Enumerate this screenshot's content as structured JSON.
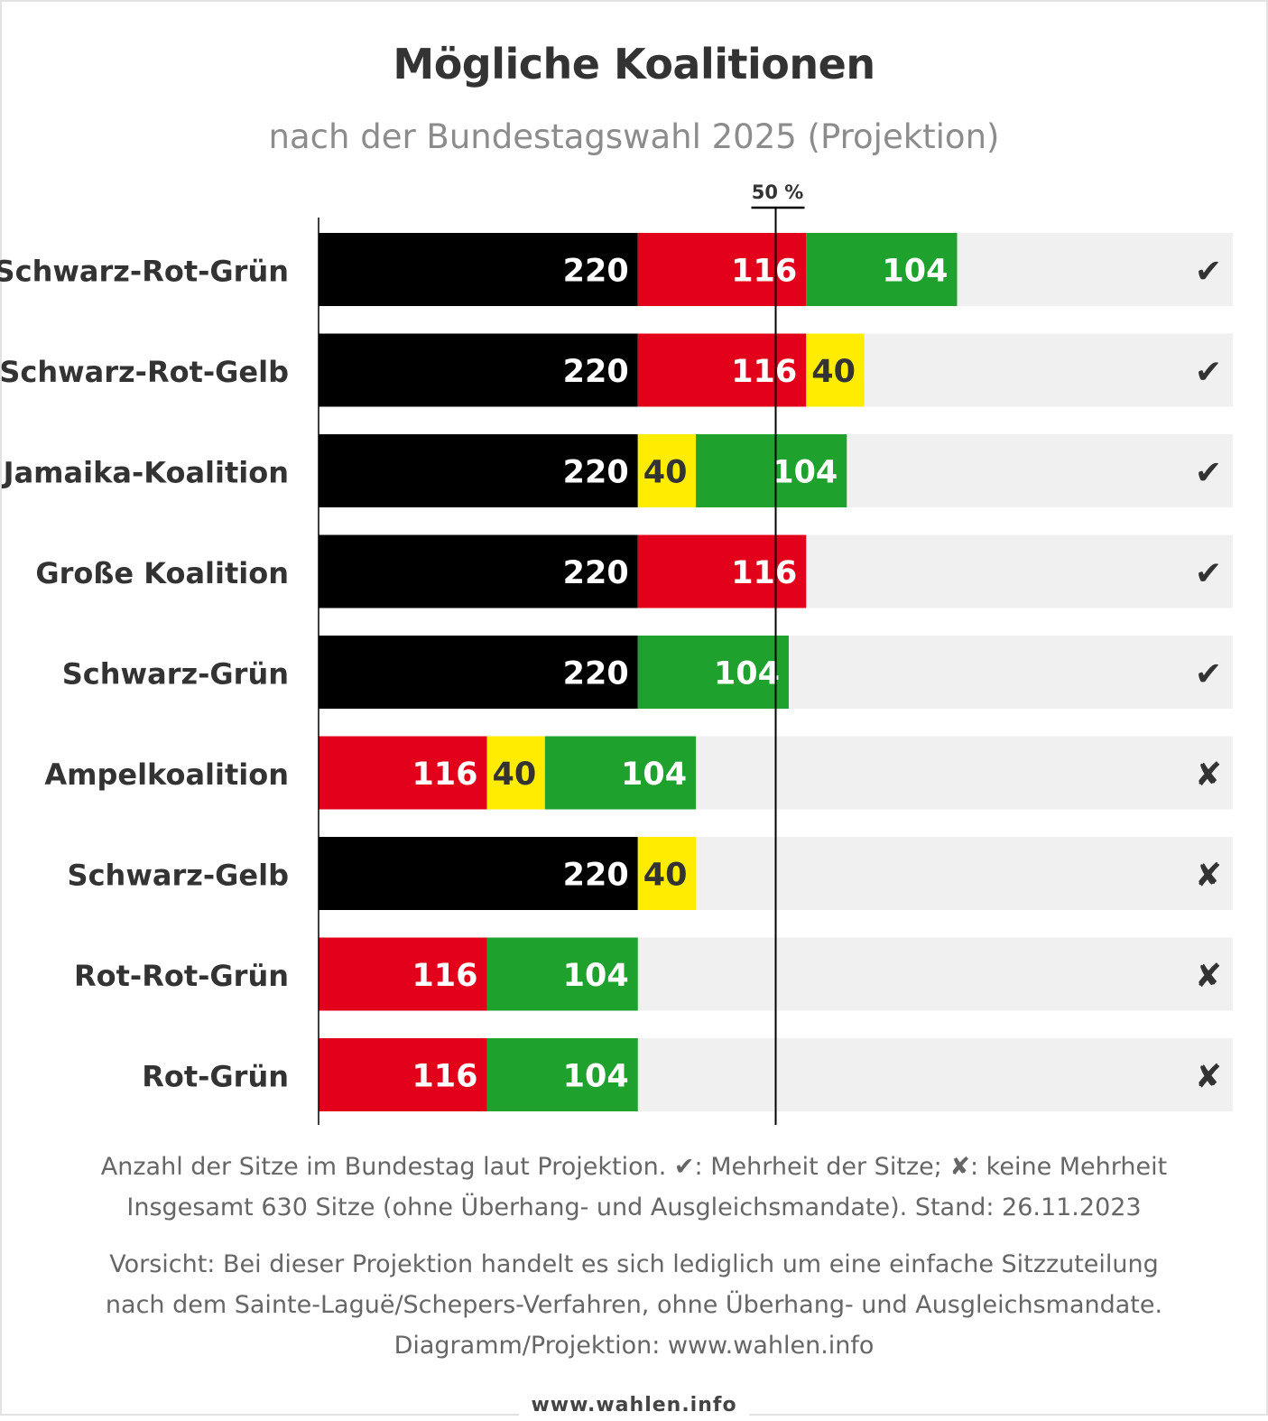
{
  "title": "Mögliche Koalitionen",
  "subtitle": "nach der Bundestagswahl 2025 (Projektion)",
  "colors": {
    "black": "#000000",
    "red": "#e2001a",
    "green": "#1fa12e",
    "yellow": "#ffec00",
    "purple": "#7a3ab8",
    "track": "#f0f0f0"
  },
  "icons": {
    "majority": "check-icon",
    "no_majority": "cross-icon"
  },
  "chart_data": {
    "type": "bar",
    "orientation": "horizontal",
    "stacked": true,
    "total_seats": 630,
    "majority_line": {
      "value": 315,
      "label": "50 %"
    },
    "xlim": [
      0,
      630
    ],
    "grid": false,
    "legend": "none",
    "categories": [
      "Schwarz-Rot-Grün",
      "Schwarz-Rot-Gelb",
      "Jamaika-Koalition",
      "Große Koalition",
      "Schwarz-Grün",
      "Ampelkoalition",
      "Schwarz-Gelb",
      "Rot-Rot-Grün",
      "Rot-Grün"
    ],
    "rows": [
      {
        "label": "Schwarz-Rot-Grün",
        "majority": true,
        "symbol": "✔",
        "segments": [
          {
            "value": 220,
            "color": "black"
          },
          {
            "value": 116,
            "color": "red"
          },
          {
            "value": 104,
            "color": "green"
          }
        ]
      },
      {
        "label": "Schwarz-Rot-Gelb",
        "majority": true,
        "symbol": "✔",
        "segments": [
          {
            "value": 220,
            "color": "black"
          },
          {
            "value": 116,
            "color": "red"
          },
          {
            "value": 40,
            "color": "yellow"
          }
        ]
      },
      {
        "label": "Jamaika-Koalition",
        "majority": true,
        "symbol": "✔",
        "segments": [
          {
            "value": 220,
            "color": "black"
          },
          {
            "value": 40,
            "color": "yellow"
          },
          {
            "value": 104,
            "color": "green"
          }
        ]
      },
      {
        "label": "Große Koalition",
        "majority": true,
        "symbol": "✔",
        "segments": [
          {
            "value": 220,
            "color": "black"
          },
          {
            "value": 116,
            "color": "red"
          }
        ]
      },
      {
        "label": "Schwarz-Grün",
        "majority": true,
        "symbol": "✔",
        "segments": [
          {
            "value": 220,
            "color": "black"
          },
          {
            "value": 104,
            "color": "green"
          }
        ]
      },
      {
        "label": "Ampelkoalition",
        "majority": false,
        "symbol": "✘",
        "segments": [
          {
            "value": 116,
            "color": "red"
          },
          {
            "value": 40,
            "color": "yellow"
          },
          {
            "value": 104,
            "color": "green"
          }
        ]
      },
      {
        "label": "Schwarz-Gelb",
        "majority": false,
        "symbol": "✘",
        "segments": [
          {
            "value": 220,
            "color": "black"
          },
          {
            "value": 40,
            "color": "yellow"
          }
        ]
      },
      {
        "label": "Rot-Rot-Grün",
        "majority": false,
        "symbol": "✘",
        "segments": [
          {
            "value": 116,
            "color": "red"
          },
          {
            "value": 0,
            "color": "purple"
          },
          {
            "value": 104,
            "color": "green"
          }
        ]
      },
      {
        "label": "Rot-Grün",
        "majority": false,
        "symbol": "✘",
        "segments": [
          {
            "value": 116,
            "color": "red"
          },
          {
            "value": 104,
            "color": "green"
          }
        ]
      }
    ]
  },
  "footnotes": {
    "line1": "Anzahl der Sitze im Bundestag laut Projektion. ✔: Mehrheit der Sitze; ✘: keine Mehrheit",
    "line2": "Insgesamt 630 Sitze (ohne Überhang- und Ausgleichsmandate). Stand: 26.11.2023",
    "line3": "Vorsicht: Bei dieser Projektion handelt es sich lediglich um eine einfache Sitzzuteilung",
    "line4": "nach dem Sainte-Laguë/Schepers-Verfahren, ohne Überhang- und Ausgleichsmandate.",
    "line5": "Diagramm/Projektion: www.wahlen.info"
  },
  "brand": "www.wahlen.info"
}
